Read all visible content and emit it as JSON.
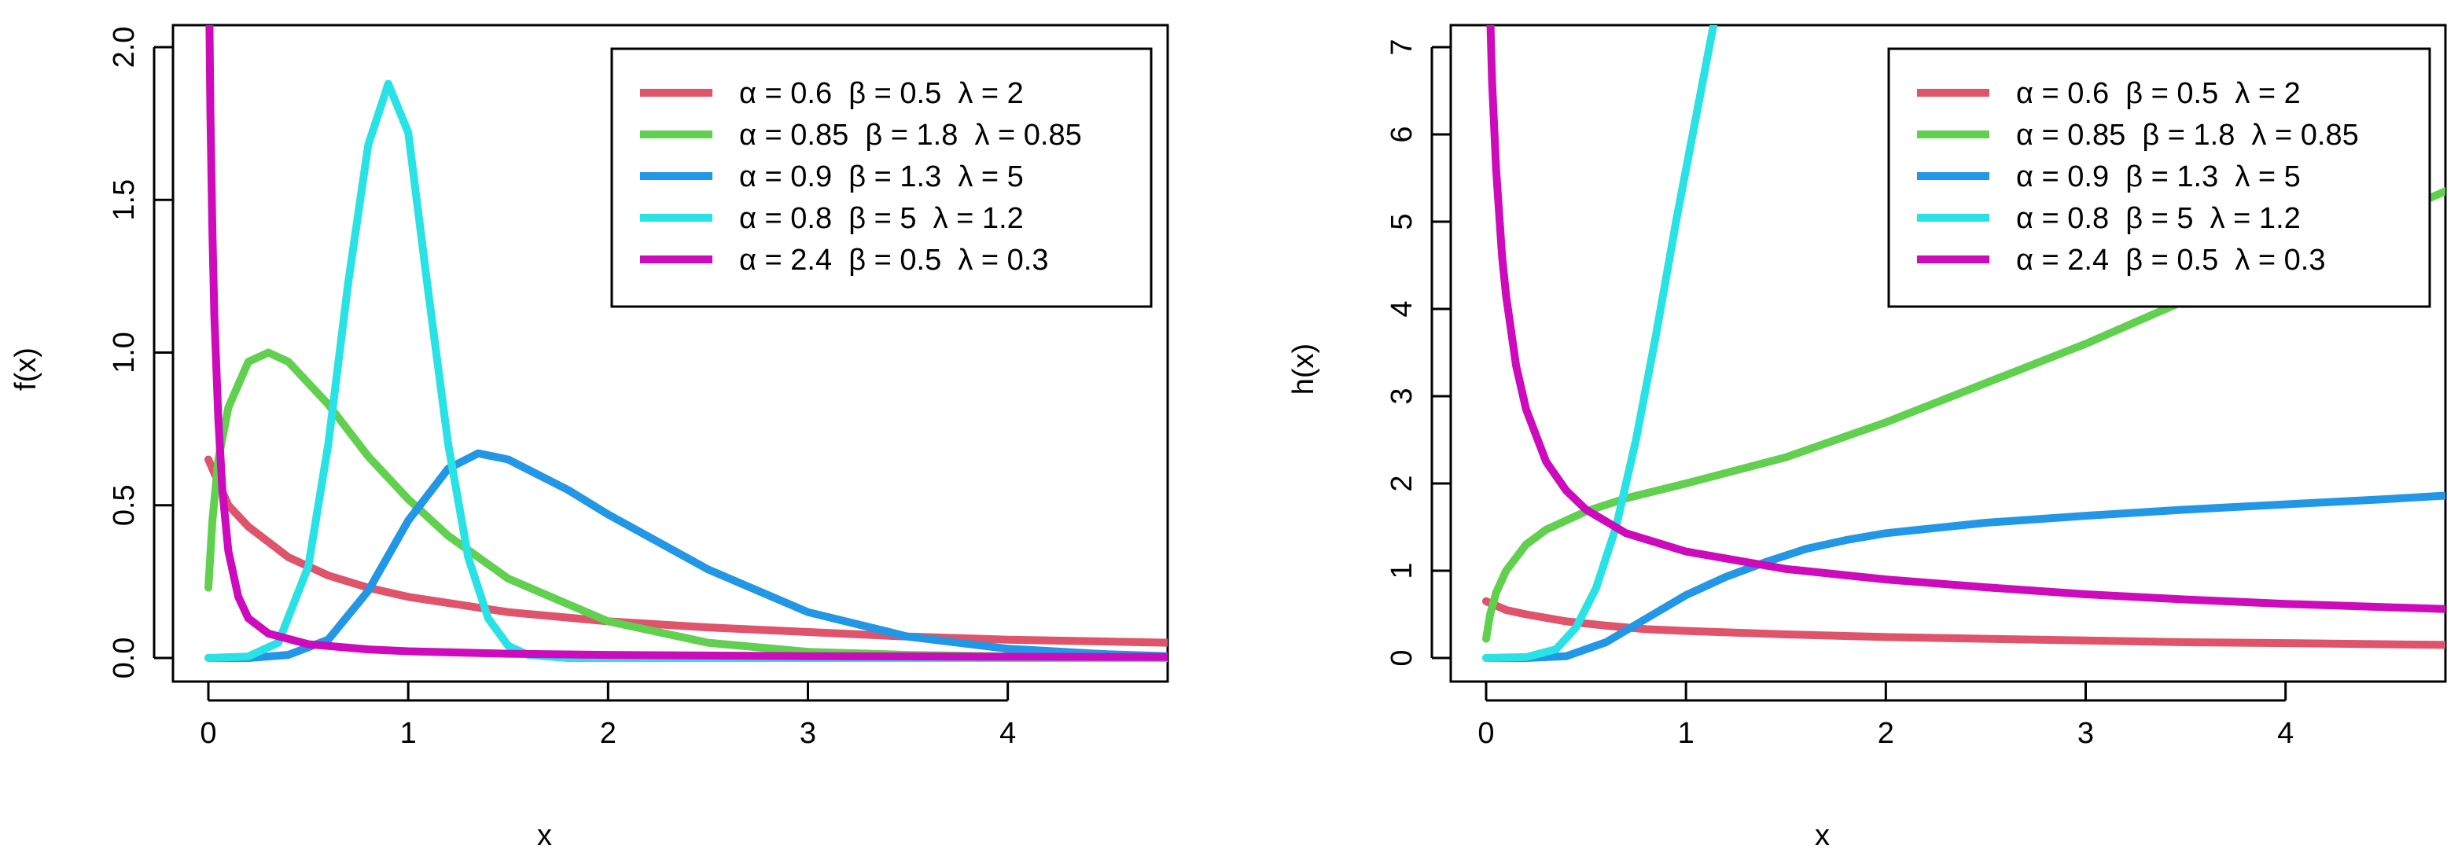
{
  "chart_data": [
    {
      "type": "line",
      "xlabel": "x",
      "ylabel": "f(x)",
      "xlim": [
        0,
        4.8
      ],
      "ylim": [
        0,
        2.0
      ],
      "xticks": [
        "0",
        "1",
        "2",
        "3",
        "4"
      ],
      "yticks": [
        "0.0",
        "0.5",
        "1.0",
        "1.5",
        "2.0"
      ],
      "grid": false,
      "legend_position": "top-right",
      "legend": [
        "α = 0.6  β = 0.5  λ = 2",
        "α = 0.85  β = 1.8  λ = 0.85",
        "α = 0.9  β = 1.3  λ = 5",
        "α = 0.8  β = 5  λ = 1.2",
        "α = 2.4  β = 0.5  λ = 0.3"
      ],
      "series": [
        {
          "color": "#DF536B",
          "x": [
            0,
            0.02,
            0.1,
            0.2,
            0.4,
            0.6,
            0.8,
            1.0,
            1.5,
            2.0,
            2.5,
            3.0,
            3.5,
            4.0,
            4.8
          ],
          "y": [
            0.65,
            0.62,
            0.5,
            0.43,
            0.33,
            0.27,
            0.23,
            0.2,
            0.15,
            0.12,
            0.1,
            0.085,
            0.07,
            0.06,
            0.05
          ]
        },
        {
          "color": "#61D04F",
          "x": [
            0,
            0.02,
            0.05,
            0.1,
            0.2,
            0.3,
            0.4,
            0.6,
            0.8,
            1.0,
            1.2,
            1.5,
            2.0,
            2.5,
            3.0,
            3.5,
            4.0,
            4.8
          ],
          "y": [
            0.23,
            0.45,
            0.65,
            0.82,
            0.97,
            1.0,
            0.97,
            0.83,
            0.66,
            0.52,
            0.4,
            0.26,
            0.12,
            0.05,
            0.02,
            0.01,
            0.005,
            0.001
          ]
        },
        {
          "color": "#2297E6",
          "x": [
            0,
            0.2,
            0.4,
            0.6,
            0.8,
            1.0,
            1.2,
            1.35,
            1.5,
            1.8,
            2.0,
            2.5,
            3.0,
            3.5,
            4.0,
            4.5,
            4.8
          ],
          "y": [
            0,
            0.0,
            0.01,
            0.06,
            0.22,
            0.45,
            0.62,
            0.67,
            0.65,
            0.55,
            0.47,
            0.29,
            0.15,
            0.07,
            0.03,
            0.012,
            0.006
          ]
        },
        {
          "color": "#28E2E5",
          "x": [
            0,
            0.2,
            0.35,
            0.5,
            0.6,
            0.7,
            0.8,
            0.9,
            1.0,
            1.1,
            1.2,
            1.3,
            1.4,
            1.5,
            1.6,
            1.8,
            2.0,
            4.8
          ],
          "y": [
            0,
            0.005,
            0.05,
            0.3,
            0.7,
            1.23,
            1.68,
            1.88,
            1.72,
            1.2,
            0.7,
            0.33,
            0.13,
            0.04,
            0.01,
            0.0,
            0.0,
            0.0
          ]
        },
        {
          "color": "#CD0BBC",
          "x": [
            0.005,
            0.01,
            0.02,
            0.03,
            0.05,
            0.07,
            0.1,
            0.15,
            0.2,
            0.3,
            0.5,
            0.8,
            1.0,
            1.5,
            2.0,
            3.0,
            4.0,
            4.8
          ],
          "y": [
            2.1,
            1.8,
            1.4,
            1.12,
            0.78,
            0.55,
            0.35,
            0.2,
            0.13,
            0.08,
            0.045,
            0.028,
            0.022,
            0.014,
            0.01,
            0.006,
            0.004,
            0.003
          ]
        }
      ]
    },
    {
      "type": "line",
      "xlabel": "x",
      "ylabel": "h(x)",
      "xlim": [
        0,
        4.8
      ],
      "ylim": [
        0,
        7
      ],
      "xticks": [
        "0",
        "1",
        "2",
        "3",
        "4"
      ],
      "yticks": [
        "0",
        "1",
        "2",
        "3",
        "4",
        "5",
        "6",
        "7"
      ],
      "grid": false,
      "legend_position": "top-right",
      "legend": [
        "α = 0.6  β = 0.5  λ = 2",
        "α = 0.85  β = 1.8  λ = 0.85",
        "α = 0.9  β = 1.3  λ = 5",
        "α = 0.8  β = 5  λ = 1.2",
        "α = 2.4  β = 0.5  λ = 0.3"
      ],
      "series": [
        {
          "color": "#DF536B",
          "x": [
            0,
            0.05,
            0.1,
            0.2,
            0.4,
            0.6,
            0.8,
            1.0,
            1.5,
            2.0,
            2.5,
            3.0,
            3.5,
            4.0,
            4.8
          ],
          "y": [
            0.65,
            0.6,
            0.55,
            0.5,
            0.42,
            0.37,
            0.33,
            0.31,
            0.27,
            0.24,
            0.22,
            0.2,
            0.18,
            0.17,
            0.15
          ]
        },
        {
          "color": "#61D04F",
          "x": [
            0,
            0.02,
            0.05,
            0.1,
            0.2,
            0.3,
            0.5,
            0.7,
            1.0,
            1.5,
            2.0,
            2.5,
            3.0,
            3.5,
            4.0,
            4.5,
            4.8
          ],
          "y": [
            0.22,
            0.5,
            0.75,
            1.0,
            1.3,
            1.47,
            1.68,
            1.83,
            2.0,
            2.3,
            2.7,
            3.15,
            3.6,
            4.1,
            4.6,
            5.05,
            5.35
          ]
        },
        {
          "color": "#2297E6",
          "x": [
            0,
            0.2,
            0.4,
            0.6,
            0.8,
            1.0,
            1.2,
            1.4,
            1.6,
            1.8,
            2.0,
            2.5,
            3.0,
            3.5,
            4.0,
            4.5,
            4.8
          ],
          "y": [
            0,
            0.0,
            0.02,
            0.18,
            0.45,
            0.72,
            0.93,
            1.1,
            1.25,
            1.35,
            1.43,
            1.55,
            1.63,
            1.7,
            1.76,
            1.82,
            1.86
          ]
        },
        {
          "color": "#28E2E5",
          "x": [
            0,
            0.2,
            0.35,
            0.45,
            0.55,
            0.65,
            0.75,
            0.85,
            0.95,
            1.05,
            1.15
          ],
          "y": [
            0,
            0.01,
            0.1,
            0.35,
            0.8,
            1.5,
            2.5,
            3.7,
            5.0,
            6.2,
            7.4
          ]
        },
        {
          "color": "#CD0BBC",
          "x": [
            0.02,
            0.03,
            0.05,
            0.08,
            0.1,
            0.15,
            0.2,
            0.3,
            0.4,
            0.5,
            0.7,
            1.0,
            1.5,
            2.0,
            2.5,
            3.0,
            3.5,
            4.0,
            4.8
          ],
          "y": [
            7.4,
            6.6,
            5.6,
            4.6,
            4.15,
            3.35,
            2.85,
            2.25,
            1.92,
            1.7,
            1.43,
            1.22,
            1.02,
            0.9,
            0.81,
            0.73,
            0.67,
            0.62,
            0.56
          ]
        }
      ]
    }
  ]
}
